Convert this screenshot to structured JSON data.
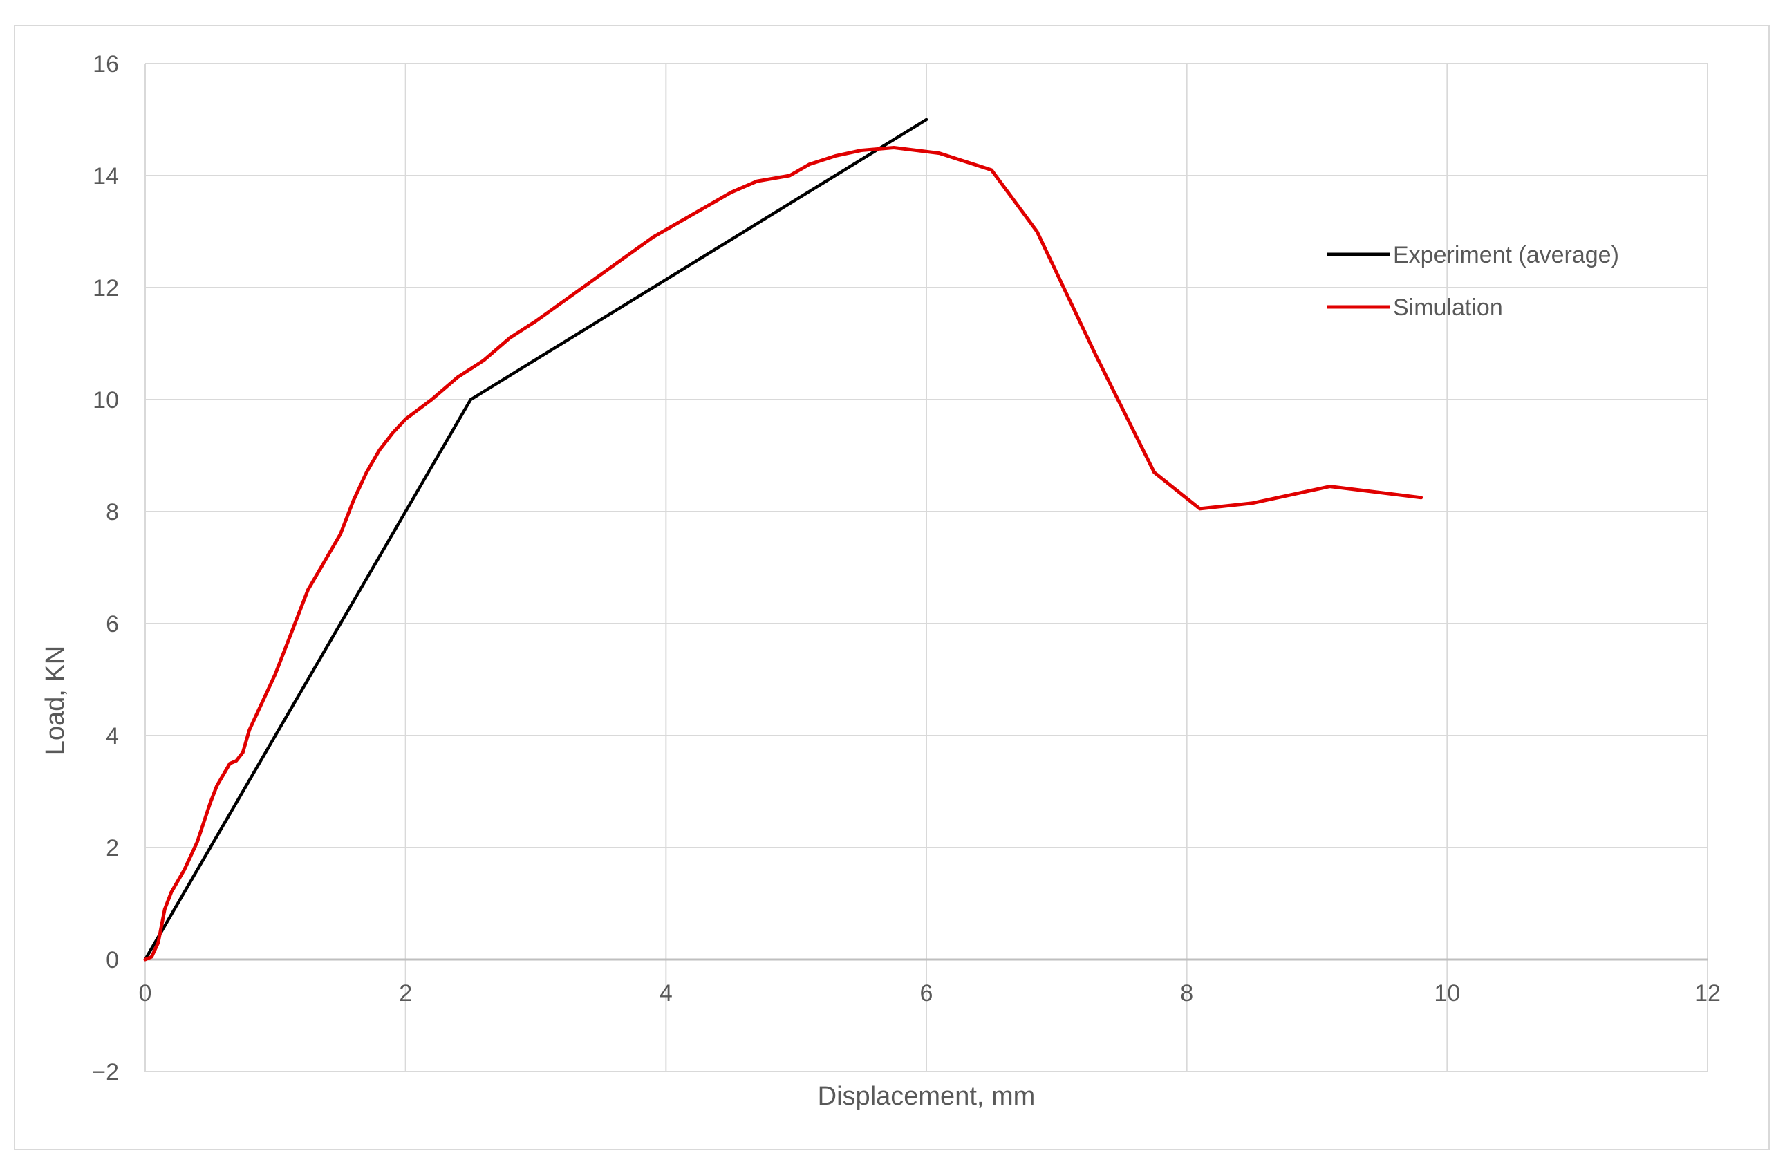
{
  "chart_data": {
    "type": "line",
    "title": "",
    "xlabel": "Displacement, mm",
    "ylabel": "Load, KN",
    "xlim": [
      0,
      12
    ],
    "ylim": [
      -2,
      16
    ],
    "x_ticks": [
      0,
      2,
      4,
      6,
      8,
      10,
      12
    ],
    "y_ticks": [
      -2,
      0,
      2,
      4,
      6,
      8,
      10,
      12,
      14,
      16
    ],
    "x_tick_labels": [
      "0",
      "2",
      "4",
      "6",
      "8",
      "10",
      "12"
    ],
    "y_tick_labels": [
      "−2",
      "0",
      "2",
      "4",
      "6",
      "8",
      "10",
      "12",
      "14",
      "16"
    ],
    "grid": true,
    "legend_position": "right",
    "series": [
      {
        "name": "Experiment (average)",
        "color": "#000000",
        "x": [
          0,
          2.5,
          6.0
        ],
        "y": [
          0,
          10.0,
          15.0
        ]
      },
      {
        "name": "Simulation",
        "color": "#e00000",
        "x": [
          0.0,
          0.05,
          0.1,
          0.15,
          0.2,
          0.3,
          0.4,
          0.5,
          0.55,
          0.6,
          0.65,
          0.7,
          0.75,
          0.8,
          0.9,
          1.0,
          1.1,
          1.2,
          1.25,
          1.3,
          1.35,
          1.4,
          1.5,
          1.6,
          1.7,
          1.8,
          1.9,
          2.0,
          2.2,
          2.4,
          2.6,
          2.8,
          3.0,
          3.3,
          3.6,
          3.9,
          4.2,
          4.5,
          4.7,
          4.95,
          5.1,
          5.3,
          5.5,
          5.75,
          6.1,
          6.5,
          6.85,
          7.3,
          7.75,
          8.1,
          8.5,
          9.1,
          9.8
        ],
        "y": [
          0.0,
          0.05,
          0.3,
          0.9,
          1.2,
          1.6,
          2.1,
          2.8,
          3.1,
          3.3,
          3.5,
          3.55,
          3.7,
          4.1,
          4.6,
          5.1,
          5.7,
          6.3,
          6.6,
          6.8,
          7.0,
          7.2,
          7.6,
          8.2,
          8.7,
          9.1,
          9.4,
          9.65,
          10.0,
          10.4,
          10.7,
          11.1,
          11.4,
          11.9,
          12.4,
          12.9,
          13.3,
          13.7,
          13.9,
          14.0,
          14.2,
          14.35,
          14.45,
          14.5,
          14.4,
          14.1,
          13.0,
          10.8,
          8.7,
          8.05,
          8.15,
          8.45,
          8.25
        ]
      }
    ]
  }
}
